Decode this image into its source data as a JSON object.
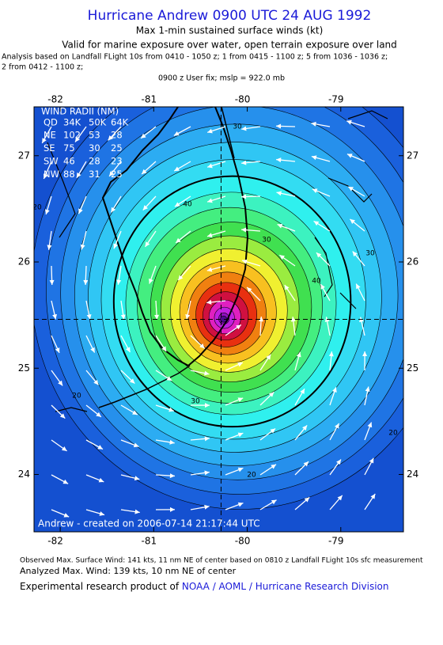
{
  "header": {
    "title": "Hurricane Andrew 0900 UTC 24 AUG 1992",
    "subtitle": "Max 1-min sustained surface winds (kt)",
    "validity": "Valid for marine exposure over water, open terrain exposure over land",
    "analysis": [
      "Analysis based on  Landfall FLight 10s from 0410 - 1050 z;  1 from 0415 - 1100 z;  5 from 1036 - 1036 z;",
      "2 from 0412 - 1100 z;"
    ],
    "fix": "0900 z User fix; mslp = 922.0 mb"
  },
  "map": {
    "xlim": [
      -82.28,
      -78.33
    ],
    "ylim": [
      23.46,
      27.46
    ],
    "xticks": [
      -82,
      -81,
      -80,
      -79
    ],
    "yticks": [
      24,
      25,
      26,
      27
    ],
    "center": {
      "lon": -80.28,
      "lat": 25.46
    },
    "wind_radii": {
      "title": "WIND RADII (NM)",
      "header": [
        "QD",
        "34K",
        "50K",
        "64K"
      ],
      "rows": [
        [
          "NE",
          102,
          53,
          28
        ],
        [
          "SE",
          75,
          30,
          25
        ],
        [
          "SW",
          46,
          28,
          23
        ],
        [
          "NW",
          88,
          31,
          25
        ]
      ]
    },
    "contour_labels": [
      30,
      40,
      30,
      30,
      40,
      20,
      30,
      20,
      20,
      20
    ],
    "credit": "Andrew - created on 2006-07-14 21:17:44 UTC"
  },
  "footer": {
    "observed": "Observed Max. Surface Wind: 141 kts, 11 nm NE of center based on 0810 z Landfall FLight 10s sfc measurement",
    "analyzed": "Analyzed Max. Wind: 139 kts, 10 nm NE of center",
    "product": "Experimental research product of ",
    "link": "NOAA / AOML / Hurricane Research Division"
  }
}
